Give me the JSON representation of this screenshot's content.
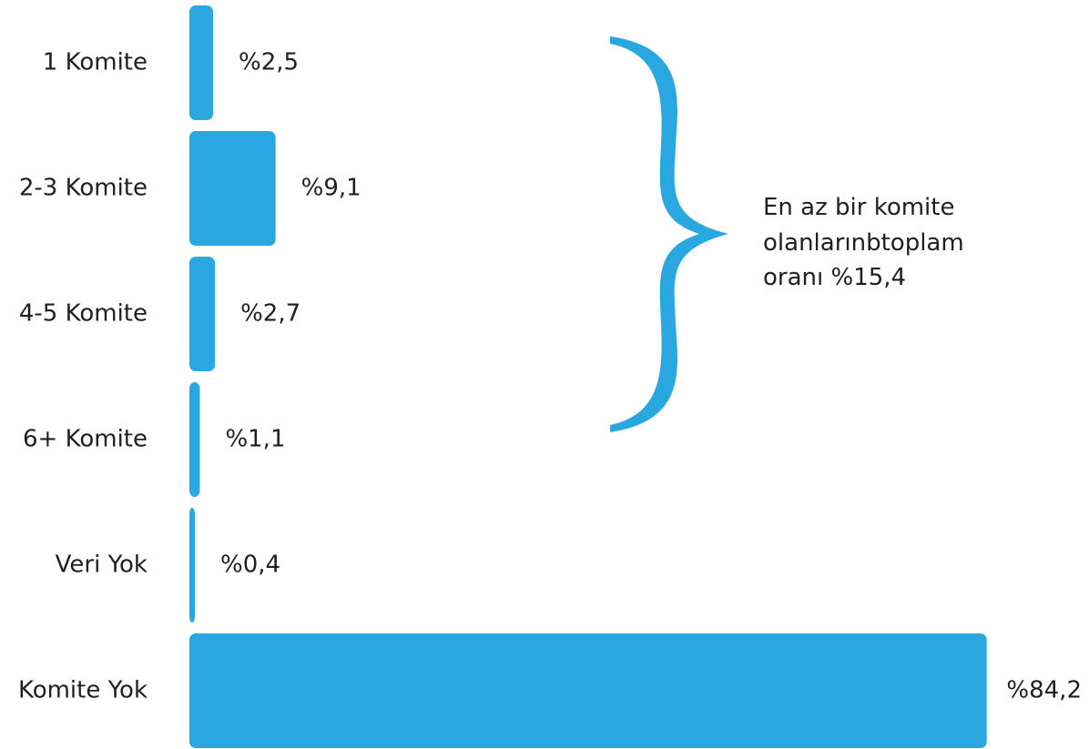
{
  "chart_data": {
    "type": "bar",
    "orientation": "horizontal",
    "categories": [
      "1 Komite",
      "2-3 Komite",
      "4-5 Komite",
      "6+ Komite",
      "Veri Yok",
      "Komite Yok"
    ],
    "values": [
      2.5,
      9.1,
      2.7,
      1.1,
      0.4,
      84.2
    ],
    "value_labels": [
      "%2,5",
      "%9,1",
      "%2,7",
      "%1,1",
      "%0,4",
      "%84,2"
    ],
    "title": "",
    "xlabel": "",
    "ylabel": "",
    "grid": false,
    "bar_color": "#29a8e0",
    "brace_color": "#29a8e0",
    "annotation": {
      "lines": [
        "En az bir komite",
        "olanlarınbtoplam",
        "oranı %15,4"
      ],
      "spans_categories": [
        "1 Komite",
        "2-3 Komite",
        "4-5 Komite",
        "6+ Komite"
      ]
    }
  }
}
